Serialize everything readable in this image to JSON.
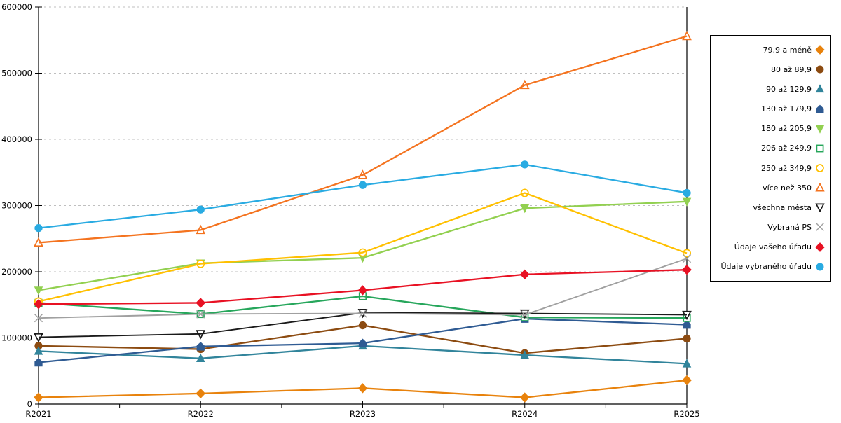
{
  "chart_data": {
    "type": "line",
    "title": "",
    "xlabel": "",
    "ylabel": "",
    "categories": [
      "R2021",
      "R2022",
      "R2023",
      "R2024",
      "R2025"
    ],
    "ylim": [
      0,
      600000
    ],
    "yticks": [
      0,
      100000,
      200000,
      300000,
      400000,
      500000,
      600000
    ],
    "ytick_labels": [
      "0",
      "100000",
      "200000",
      "300000",
      "400000",
      "500000",
      "600000"
    ],
    "grid": "horizontal-dashed",
    "gridline_color": "#bfbfbf",
    "legend_position": "right-outside",
    "series": [
      {
        "name": "79,9 a méně",
        "marker": "diamond",
        "fill": "solid",
        "color": "#E8820C",
        "values": [
          10000,
          16000,
          24000,
          10000,
          36000
        ]
      },
      {
        "name": "80 až 89,9",
        "marker": "circle",
        "fill": "solid",
        "color": "#8C4B11",
        "values": [
          88000,
          83000,
          119000,
          77000,
          99000
        ]
      },
      {
        "name": "90 až 129,9",
        "marker": "triangle-up",
        "fill": "solid",
        "color": "#31849B",
        "values": [
          80000,
          69000,
          88000,
          74000,
          61000
        ]
      },
      {
        "name": "130 až 179,9",
        "marker": "pentagon",
        "fill": "solid",
        "color": "#2F5B93",
        "values": [
          63000,
          87000,
          92000,
          129000,
          120000
        ]
      },
      {
        "name": "180 až 205,9",
        "marker": "triangle-down",
        "fill": "solid",
        "color": "#92D050",
        "values": [
          172000,
          213000,
          221000,
          296000,
          306000
        ]
      },
      {
        "name": "206 až 249,9",
        "marker": "square",
        "fill": "hollow",
        "color": "#26A65B",
        "values": [
          153000,
          136000,
          163000,
          131000,
          130000
        ]
      },
      {
        "name": "250 až 349,9",
        "marker": "circle",
        "fill": "hollow",
        "color": "#FFC000",
        "values": [
          155000,
          212000,
          229000,
          319000,
          228000
        ]
      },
      {
        "name": "více než 350",
        "marker": "triangle-up",
        "fill": "hollow",
        "color": "#F4731F",
        "values": [
          244000,
          263000,
          346000,
          482000,
          556000
        ]
      },
      {
        "name": "všechna města",
        "marker": "triangle-down",
        "fill": "hollow",
        "color": "#1A1A1A",
        "values": [
          101000,
          106000,
          138000,
          137000,
          135000
        ]
      },
      {
        "name": "Vybraná PS",
        "marker": "x",
        "fill": "stroke",
        "color": "#A0A0A0",
        "values": [
          130000,
          136000,
          137000,
          135000,
          220000
        ]
      },
      {
        "name": "Údaje vašeho úřadu",
        "marker": "diamond",
        "fill": "solid",
        "color": "#E81123",
        "values": [
          151000,
          153000,
          172000,
          196000,
          203000
        ]
      },
      {
        "name": "Údaje vybraného úřadu",
        "marker": "circle",
        "fill": "solid",
        "color": "#29ABE2",
        "values": [
          266000,
          294000,
          331000,
          362000,
          319000
        ]
      }
    ]
  }
}
